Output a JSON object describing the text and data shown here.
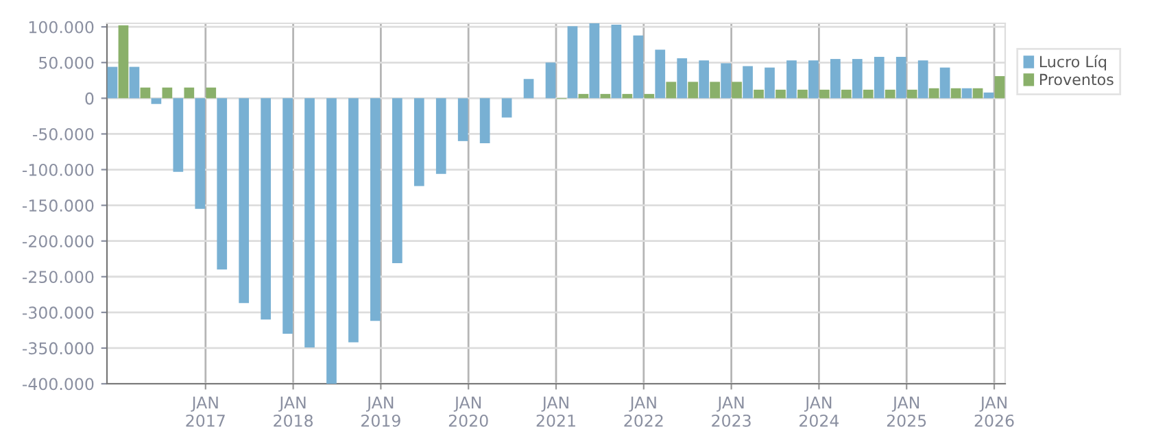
{
  "chart_data": {
    "type": "bar",
    "categories": [
      null,
      null,
      null,
      null,
      "JAN\n2017",
      null,
      null,
      null,
      "JAN\n2018",
      null,
      null,
      null,
      "JAN\n2019",
      null,
      null,
      null,
      "JAN\n2020",
      null,
      null,
      null,
      "JAN\n2021",
      null,
      null,
      null,
      "JAN\n2022",
      null,
      null,
      null,
      "JAN\n2023",
      null,
      null,
      null,
      "JAN\n2024",
      null,
      null,
      null,
      "JAN\n2025",
      null,
      null,
      null,
      "JAN\n2026"
    ],
    "series": [
      {
        "name": "Lucro Líq",
        "color": "#78b0d3",
        "values": [
          44000,
          44000,
          -8000,
          -103000,
          -155000,
          -240000,
          -287000,
          -310000,
          -330000,
          -349000,
          -400000,
          -342000,
          -312000,
          -231000,
          -123000,
          -106000,
          -60000,
          -63000,
          -27000,
          27000,
          50000,
          101000,
          105000,
          103000,
          88000,
          68000,
          56000,
          53000,
          49000,
          45000,
          43000,
          53000,
          53000,
          55000,
          55000,
          58000,
          58000,
          53000,
          43000,
          14000,
          8000
        ]
      },
      {
        "name": "Proventos",
        "color": "#8ab06a",
        "values": [
          102000,
          15000,
          15000,
          15000,
          15000,
          0,
          0,
          0,
          0,
          0,
          0,
          0,
          0,
          0,
          0,
          0,
          0,
          0,
          0,
          0,
          -1000,
          6000,
          6000,
          6000,
          6000,
          23000,
          23000,
          23000,
          23000,
          12000,
          12000,
          12000,
          12000,
          12000,
          12000,
          12000,
          12000,
          14000,
          14000,
          14000,
          31000
        ]
      }
    ],
    "ylim": [
      -400000,
      105000
    ],
    "yticks": [
      {
        "value": 100000,
        "label": "100.000"
      },
      {
        "value": 50000,
        "label": "50.000"
      },
      {
        "value": 0,
        "label": "0"
      },
      {
        "value": -50000,
        "label": "-50.000"
      },
      {
        "value": -100000,
        "label": "-100.000"
      },
      {
        "value": -150000,
        "label": "-150.000"
      },
      {
        "value": -200000,
        "label": "-200.000"
      },
      {
        "value": -250000,
        "label": "-250.000"
      },
      {
        "value": -300000,
        "label": "-300.000"
      },
      {
        "value": -350000,
        "label": "-350.000"
      },
      {
        "value": -400000,
        "label": "-400.000"
      }
    ],
    "grid": true,
    "legend": "top right"
  }
}
